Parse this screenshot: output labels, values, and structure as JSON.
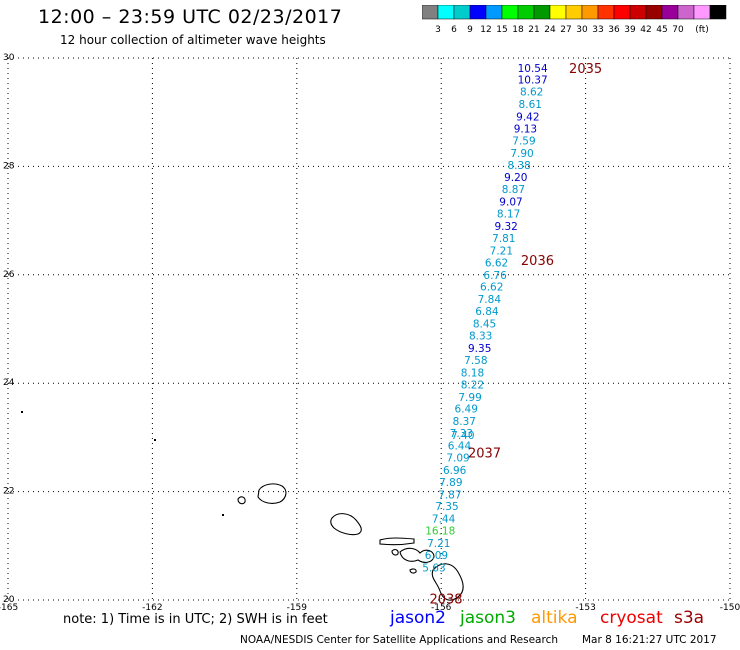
{
  "header": {
    "title": "12:00 – 23:59 UTC 02/23/2017",
    "subtitle": "12 hour collection of altimeter wave heights"
  },
  "colorbar": {
    "colors": [
      "#808080",
      "#00ffff",
      "#00cccc",
      "#0000ff",
      "#0099ff",
      "#00ff00",
      "#00cc00",
      "#009900",
      "#ffff00",
      "#ffcc00",
      "#ff9900",
      "#ff3300",
      "#ff0000",
      "#cc0000",
      "#990000",
      "#990099",
      "#cc66cc",
      "#ff99ff",
      "#000000"
    ],
    "labels": [
      "3",
      "6",
      "9",
      "12",
      "15",
      "18",
      "21",
      "24",
      "27",
      "30",
      "33",
      "36",
      "39",
      "42",
      "45",
      "70",
      "(ft)"
    ]
  },
  "map": {
    "lon_ticks": [
      "-165",
      "-162",
      "-159",
      "-156",
      "-153",
      "-150"
    ],
    "lat_ticks": [
      "20",
      "22",
      "24",
      "26",
      "28",
      "30"
    ],
    "lon_range": [
      -165,
      -150
    ],
    "lat_range": [
      20,
      30
    ]
  },
  "passes": [
    {
      "id": "2035",
      "lon": -153.0,
      "lat": 29.82
    },
    {
      "id": "2036",
      "lon": -154.0,
      "lat": 26.27
    },
    {
      "id": "2037",
      "lon": -155.1,
      "lat": 22.72
    },
    {
      "id": "2038",
      "lon": -155.9,
      "lat": 20.03
    }
  ],
  "measurements": [
    {
      "v": "10.54",
      "lon": -154.1,
      "lat": 29.82,
      "c": "#0000cc"
    },
    {
      "v": "10.37",
      "lon": -154.1,
      "lat": 29.6,
      "c": "#0000cc"
    },
    {
      "v": "8.62",
      "lon": -154.12,
      "lat": 29.38,
      "c": "#0099cc"
    },
    {
      "v": "8.61",
      "lon": -154.15,
      "lat": 29.15,
      "c": "#0099cc"
    },
    {
      "v": "9.42",
      "lon": -154.2,
      "lat": 28.92,
      "c": "#0000cc"
    },
    {
      "v": "9.13",
      "lon": -154.25,
      "lat": 28.7,
      "c": "#0000cc"
    },
    {
      "v": "7.59",
      "lon": -154.28,
      "lat": 28.48,
      "c": "#0099cc"
    },
    {
      "v": "7.90",
      "lon": -154.32,
      "lat": 28.25,
      "c": "#0099cc"
    },
    {
      "v": "8.38",
      "lon": -154.38,
      "lat": 28.03,
      "c": "#0099cc"
    },
    {
      "v": "9.20",
      "lon": -154.45,
      "lat": 27.8,
      "c": "#0000cc"
    },
    {
      "v": "8.87",
      "lon": -154.5,
      "lat": 27.58,
      "c": "#0099cc"
    },
    {
      "v": "9.07",
      "lon": -154.55,
      "lat": 27.35,
      "c": "#0000cc"
    },
    {
      "v": "8.17",
      "lon": -154.6,
      "lat": 27.13,
      "c": "#0099cc"
    },
    {
      "v": "9.32",
      "lon": -154.65,
      "lat": 26.9,
      "c": "#0000cc"
    },
    {
      "v": "7.81",
      "lon": -154.7,
      "lat": 26.68,
      "c": "#0099cc"
    },
    {
      "v": "7.21",
      "lon": -154.75,
      "lat": 26.45,
      "c": "#0099cc"
    },
    {
      "v": "6.62",
      "lon": -154.85,
      "lat": 26.23,
      "c": "#0099cc"
    },
    {
      "v": "6.76",
      "lon": -154.88,
      "lat": 26.0,
      "c": "#0099cc"
    },
    {
      "v": "6.62",
      "lon": -154.95,
      "lat": 25.78,
      "c": "#0099cc"
    },
    {
      "v": "7.84",
      "lon": -155.0,
      "lat": 25.55,
      "c": "#0099cc"
    },
    {
      "v": "6.84",
      "lon": -155.05,
      "lat": 25.33,
      "c": "#0099cc"
    },
    {
      "v": "8.45",
      "lon": -155.1,
      "lat": 25.1,
      "c": "#0099cc"
    },
    {
      "v": "8.33",
      "lon": -155.18,
      "lat": 24.88,
      "c": "#0099cc"
    },
    {
      "v": "9.35",
      "lon": -155.2,
      "lat": 24.65,
      "c": "#0000cc"
    },
    {
      "v": "7.58",
      "lon": -155.28,
      "lat": 24.43,
      "c": "#0099cc"
    },
    {
      "v": "8.18",
      "lon": -155.35,
      "lat": 24.2,
      "c": "#0099cc"
    },
    {
      "v": "8.22",
      "lon": -155.35,
      "lat": 23.98,
      "c": "#0099cc"
    },
    {
      "v": "7.99",
      "lon": -155.4,
      "lat": 23.75,
      "c": "#0099cc"
    },
    {
      "v": "6.49",
      "lon": -155.48,
      "lat": 23.53,
      "c": "#0099cc"
    },
    {
      "v": "8.37",
      "lon": -155.52,
      "lat": 23.3,
      "c": "#0099cc"
    },
    {
      "v": "7.33",
      "lon": -155.58,
      "lat": 23.08,
      "c": "#0099cc"
    },
    {
      "v": "7.40",
      "lon": -155.55,
      "lat": 23.04,
      "c": "#0099cc"
    },
    {
      "v": "6.44",
      "lon": -155.62,
      "lat": 22.85,
      "c": "#0099cc"
    },
    {
      "v": "7.09",
      "lon": -155.65,
      "lat": 22.63,
      "c": "#0099cc"
    },
    {
      "v": "6.96",
      "lon": -155.72,
      "lat": 22.4,
      "c": "#0099cc"
    },
    {
      "v": "7.89",
      "lon": -155.8,
      "lat": 22.18,
      "c": "#0099cc"
    },
    {
      "v": "7.87",
      "lon": -155.82,
      "lat": 21.95,
      "c": "#0099cc"
    },
    {
      "v": "7.35",
      "lon": -155.88,
      "lat": 21.73,
      "c": "#0099cc"
    },
    {
      "v": "7.44",
      "lon": -155.95,
      "lat": 21.5,
      "c": "#0099cc"
    },
    {
      "v": "16.18",
      "lon": -156.02,
      "lat": 21.28,
      "c": "#33cc33"
    },
    {
      "v": "7.21",
      "lon": -156.05,
      "lat": 21.05,
      "c": "#0099cc"
    },
    {
      "v": "6.09",
      "lon": -156.1,
      "lat": 20.83,
      "c": "#0099cc"
    },
    {
      "v": "5.63",
      "lon": -156.15,
      "lat": 20.6,
      "c": "#0099cc"
    }
  ],
  "footer": {
    "note": "note: 1) Time is in UTC; 2) SWH is in feet",
    "satellites": [
      {
        "name": "jason2",
        "color": "#0000ff"
      },
      {
        "name": "jason3",
        "color": "#00aa00"
      },
      {
        "name": "altika",
        "color": "#ff9900"
      },
      {
        "name": "cryosat",
        "color": "#ee0000"
      },
      {
        "name": "s3a",
        "color": "#990000"
      }
    ],
    "credit": "NOAA/NESDIS Center for Satellite Applications and Research",
    "timestamp": "Mar  8 16:21:27 UTC 2017"
  }
}
